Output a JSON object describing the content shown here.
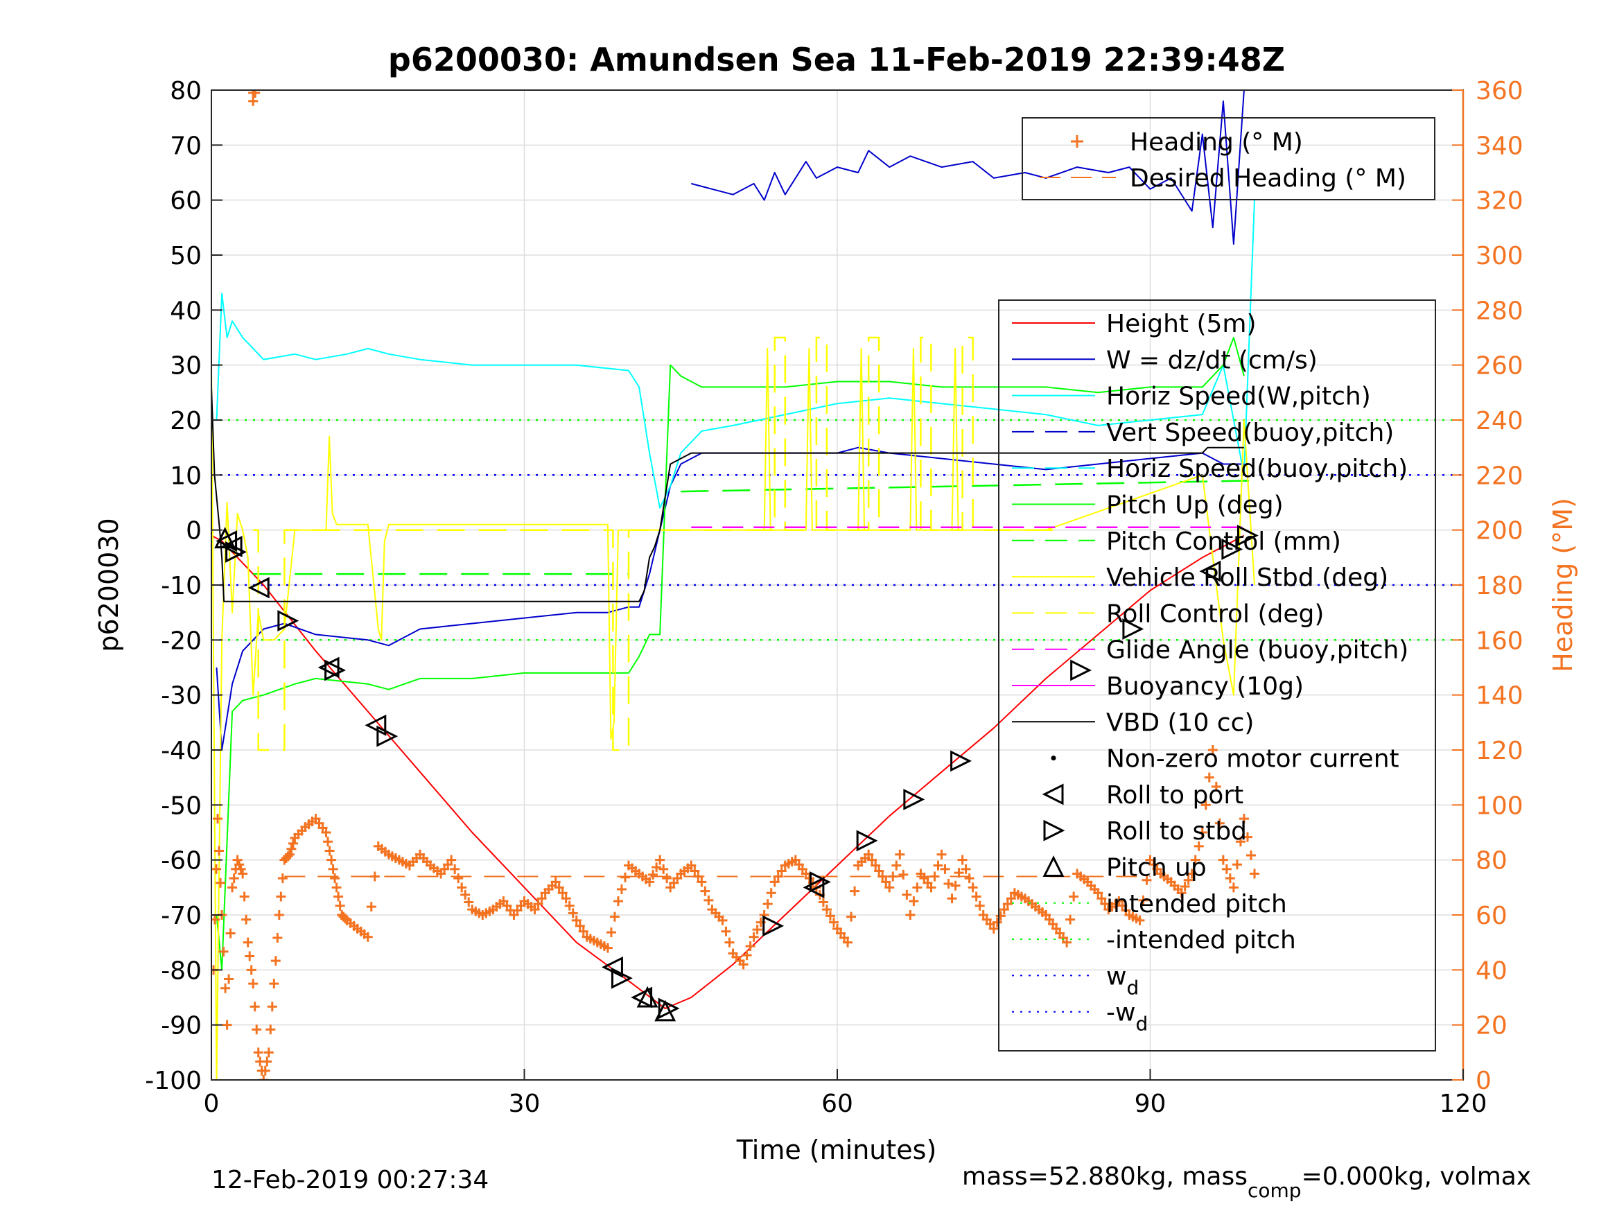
{
  "chart_data": {
    "type": "line",
    "title": "p6200030: Amundsen Sea 11-Feb-2019 22:39:48Z",
    "xlabel": "Time (minutes)",
    "ylabel": "p6200030",
    "ylabel_right": "Heading (°M)",
    "xlim": [
      0,
      120
    ],
    "ylim": [
      -100,
      80
    ],
    "ylim_right": [
      0,
      360
    ],
    "grid": true,
    "x_ticks": [
      "0",
      "30",
      "60",
      "90",
      "120"
    ],
    "y_ticks": [
      "80",
      "70",
      "60",
      "50",
      "40",
      "30",
      "20",
      "10",
      "0",
      "-10",
      "-20",
      "-30",
      "-40",
      "-50",
      "-60",
      "-70",
      "-80",
      "-90",
      "-100"
    ],
    "y_ticks_right": [
      "360",
      "340",
      "320",
      "300",
      "280",
      "260",
      "240",
      "220",
      "200",
      "180",
      "160",
      "140",
      "120",
      "100",
      "80",
      "60",
      "40",
      "20",
      "0"
    ],
    "colors": {
      "height": "#FF0000",
      "w": "#0000CC",
      "horiz_w": "#00FFFF",
      "pitch": "#00FF00",
      "roll": "#FFFF00",
      "glide": "#FF00FF",
      "vbd": "#000000",
      "heading": "#F37321",
      "intended": "#00FF00",
      "wd": "#0000FF"
    },
    "legend_top": {
      "placement": "top-right",
      "entries": [
        {
          "label": "Heading (° M)",
          "marker": "plus",
          "color": "#F37321"
        },
        {
          "label": "Desired Heading (° M)",
          "marker": "dash",
          "color": "#F37321"
        }
      ]
    },
    "legend_main": {
      "placement": "right",
      "entries": [
        {
          "label": "Height (5m)",
          "style": "solid",
          "color": "#FF0000"
        },
        {
          "label": "W = dz/dt (cm/s)",
          "style": "solid",
          "color": "#0000CC"
        },
        {
          "label": "Horiz Speed(W,pitch)",
          "style": "solid",
          "color": "#00FFFF"
        },
        {
          "label": "Vert Speed(buoy,pitch)",
          "style": "dashed",
          "color": "#0000CC"
        },
        {
          "label": "Horiz Speed(buoy,pitch)",
          "style": "dashed",
          "color": "#00FFFF"
        },
        {
          "label": "Pitch Up (deg)",
          "style": "solid",
          "color": "#00FF00"
        },
        {
          "label": "Pitch Control (mm)",
          "style": "dashed",
          "color": "#00FF00"
        },
        {
          "label": "Vehicle Roll Stbd (deg)",
          "style": "solid",
          "color": "#FFFF00"
        },
        {
          "label": "Roll Control (deg)",
          "style": "dashed",
          "color": "#FFFF00"
        },
        {
          "label": "Glide Angle (buoy,pitch)",
          "style": "dashed",
          "color": "#FF00FF"
        },
        {
          "label": "Buoyancy (10g)",
          "style": "solid",
          "color": "#FF00FF"
        },
        {
          "label": "VBD (10 cc)",
          "style": "solid",
          "color": "#000000"
        },
        {
          "label": "Non-zero motor current",
          "style": "dot",
          "color": "#000000"
        },
        {
          "label": "Roll to port",
          "style": "tri-left",
          "color": "#000000"
        },
        {
          "label": "Roll to stbd",
          "style": "tri-right",
          "color": "#000000"
        },
        {
          "label": "Pitch up",
          "style": "tri-up",
          "color": "#000000"
        },
        {
          "label": "intended pitch",
          "style": "dotted",
          "color": "#00FF00"
        },
        {
          "label": "-intended pitch",
          "style": "dotted",
          "color": "#00FF00"
        },
        {
          "label": "w",
          "sub": "d",
          "style": "dotted",
          "color": "#0000FF"
        },
        {
          "label": "-w",
          "sub": "d",
          "style": "dotted",
          "color": "#0000FF"
        }
      ]
    },
    "series": [
      {
        "name": "Height (5m)",
        "color": "#FF0000",
        "dash": "",
        "x": [
          0,
          1,
          2,
          5,
          10,
          15,
          20,
          25,
          30,
          35,
          40,
          43.5,
          46,
          50,
          55,
          60,
          65,
          70,
          75,
          80,
          85,
          90,
          95,
          99
        ],
        "y": [
          -1,
          -2,
          -4,
          -10,
          -22,
          -33,
          -44,
          -55,
          -65,
          -75,
          -82,
          -87,
          -85,
          -79,
          -70,
          -61,
          -52,
          -44,
          -36,
          -27,
          -19,
          -11,
          -5,
          -1
        ]
      },
      {
        "name": "W = dz/dt (cm/s)",
        "color": "#0000CC",
        "dash": "",
        "x": [
          0.5,
          1,
          2,
          3,
          5,
          7,
          10,
          15,
          17,
          20,
          25,
          30,
          35,
          38,
          40,
          41,
          42,
          43,
          44,
          45,
          47,
          50,
          55,
          60,
          62,
          65,
          70,
          75,
          80,
          85,
          90,
          95,
          97,
          99
        ],
        "y": [
          -25,
          -40,
          -28,
          -22,
          -18,
          -17,
          -19,
          -20,
          -21,
          -18,
          -17,
          -16,
          -15,
          -15,
          -14,
          -14,
          -8,
          0,
          8,
          12,
          14,
          14,
          14,
          14,
          15,
          14,
          13,
          12,
          11,
          12,
          13,
          14,
          12,
          12
        ]
      },
      {
        "name": "W noisy top",
        "color": "#0000CC",
        "dash": "",
        "x": [
          46,
          48,
          50,
          52,
          53,
          54,
          55,
          57,
          58,
          60,
          62,
          63,
          65,
          67,
          70,
          73,
          75,
          78,
          80,
          83,
          86,
          88,
          90,
          92,
          94,
          95,
          96,
          97,
          98,
          99
        ],
        "y": [
          63,
          62,
          61,
          63,
          60,
          65,
          61,
          67,
          64,
          66,
          65,
          69,
          66,
          68,
          66,
          67,
          64,
          65,
          64,
          66,
          65,
          66,
          62,
          64,
          58,
          72,
          55,
          78,
          52,
          80
        ]
      },
      {
        "name": "Horiz Speed(W,pitch)",
        "color": "#00FFFF",
        "dash": "",
        "x": [
          0.5,
          1,
          1.5,
          2,
          3,
          5,
          8,
          10,
          13,
          15,
          17,
          20,
          25,
          30,
          35,
          40,
          41,
          42,
          43,
          44,
          45,
          47,
          50,
          55,
          60,
          65,
          70,
          75,
          80,
          85,
          90,
          95,
          97,
          98,
          99,
          100
        ],
        "y": [
          20,
          43,
          35,
          38,
          35,
          31,
          32,
          31,
          32,
          33,
          32,
          31,
          30,
          30,
          30,
          29,
          26,
          14,
          4,
          8,
          14,
          18,
          19,
          21,
          23,
          24,
          23,
          22,
          21,
          19,
          20,
          21,
          30,
          20,
          10,
          60
        ]
      },
      {
        "name": "Pitch Up (deg)",
        "color": "#00FF00",
        "dash": "",
        "x": [
          0.5,
          1,
          2,
          3,
          5,
          8,
          10,
          15,
          17,
          20,
          25,
          30,
          35,
          38,
          40,
          41,
          42,
          43,
          44,
          45,
          47,
          50,
          55,
          60,
          65,
          70,
          75,
          80,
          85,
          90,
          95,
          97,
          98,
          99
        ],
        "y": [
          -70,
          -80,
          -33,
          -31,
          -30,
          -28,
          -27,
          -28,
          -29,
          -27,
          -27,
          -26,
          -26,
          -26,
          -26,
          -23,
          -19,
          -19,
          30,
          28,
          26,
          26,
          26,
          27,
          27,
          26,
          26,
          26,
          25,
          26,
          26,
          30,
          35,
          28
        ]
      },
      {
        "name": "Pitch Control (mm)",
        "color": "#00FF00",
        "dash": "40,20",
        "x": [
          4,
          40
        ],
        "y": [
          -8,
          -8
        ]
      },
      {
        "name": "Pitch Control (mm) 2",
        "color": "#00FF00",
        "dash": "40,20",
        "x": [
          45,
          100
        ],
        "y": [
          7,
          9
        ]
      },
      {
        "name": "Vehicle Roll Stbd (deg)",
        "color": "#FFFF00",
        "dash": "",
        "x": [
          0,
          0.5,
          1,
          1.5,
          2,
          2.5,
          3,
          3.5,
          4,
          4.5,
          5,
          6,
          7,
          8,
          10,
          11,
          11.3,
          11.6,
          12,
          15,
          16,
          16.3,
          16.6,
          17,
          20,
          25,
          30,
          35,
          38,
          38.3,
          38.6,
          39,
          40,
          45,
          53,
          53.3,
          53.6,
          54,
          57,
          57.3,
          57.6,
          58,
          62,
          62.3,
          62.6,
          63,
          67,
          67.3,
          67.6,
          68,
          71,
          71.3,
          71.6,
          72,
          80,
          95,
          97,
          98,
          99,
          100
        ],
        "y": [
          30,
          -100,
          -20,
          5,
          -15,
          3,
          0,
          -5,
          -30,
          -15,
          -20,
          -20,
          -18,
          0,
          0,
          0,
          17,
          3,
          1,
          1,
          -18,
          -20,
          -2,
          1,
          1,
          1,
          1,
          1,
          1,
          -38,
          -35,
          0,
          0,
          0,
          0,
          33,
          0,
          0,
          0,
          33,
          0,
          0,
          0,
          33,
          0,
          0,
          0,
          33,
          0,
          0,
          0,
          33,
          0,
          0,
          0,
          10,
          -20,
          -30,
          20,
          -10
        ]
      },
      {
        "name": "Roll Control (deg)",
        "color": "#FFFF00",
        "dash": "40,20",
        "x": [
          4,
          4.5,
          4.5,
          7,
          7,
          7.5,
          7.5,
          38.5,
          38.5,
          40,
          40,
          54,
          54,
          55,
          55,
          58,
          58,
          59,
          59,
          63,
          63,
          64,
          64,
          68,
          68,
          69,
          69,
          72,
          72,
          73,
          73,
          82
        ],
        "y": [
          0,
          0,
          -40,
          -40,
          0,
          0,
          0,
          0,
          -40,
          -40,
          0,
          0,
          35,
          35,
          0,
          0,
          35,
          35,
          0,
          0,
          35,
          35,
          0,
          0,
          35,
          35,
          0,
          0,
          35,
          35,
          0,
          0
        ]
      },
      {
        "name": "Glide Angle (buoy,pitch)",
        "color": "#FF00FF",
        "dash": "30,15",
        "x": [
          46,
          99
        ],
        "y": [
          0.5,
          0.5
        ]
      },
      {
        "name": "VBD (10 cc)",
        "color": "#000000",
        "dash": "",
        "x": [
          0,
          0.3,
          0.8,
          1,
          1.2,
          2,
          41,
          41.5,
          42,
          42.5,
          43,
          44,
          46,
          60,
          80,
          95,
          95.5,
          99
        ],
        "y": [
          26,
          10,
          0,
          -5,
          -13,
          -13,
          -13,
          -11,
          -5,
          -3,
          0,
          12,
          14,
          14,
          14,
          14,
          15,
          15
        ]
      },
      {
        "name": "intended pitch",
        "color": "#00FF00",
        "dash": "3,9",
        "x": [
          0,
          120
        ],
        "y": [
          20,
          20
        ]
      },
      {
        "name": "-intended pitch",
        "color": "#00FF00",
        "dash": "3,9",
        "x": [
          0,
          120
        ],
        "y": [
          -20,
          -20
        ]
      },
      {
        "name": "w_d",
        "color": "#0000FF",
        "dash": "3,9",
        "x": [
          0,
          120
        ],
        "y": [
          10,
          10
        ]
      },
      {
        "name": "-w_d",
        "color": "#0000FF",
        "dash": "3,9",
        "x": [
          0,
          120
        ],
        "y": [
          -10,
          -10
        ]
      }
    ],
    "heading": {
      "name": "Heading (° M)",
      "color": "#F37321",
      "x": [
        0.2,
        0.6,
        1,
        1.5,
        2,
        2.5,
        3,
        3.5,
        4,
        4.5,
        5,
        5.5,
        6,
        6.5,
        7,
        7.5,
        8,
        9,
        10,
        11,
        11.5,
        12,
        12.5,
        13,
        14,
        15,
        16,
        17,
        18,
        19,
        20,
        21,
        22,
        23,
        24,
        25,
        26,
        27,
        28,
        29,
        30,
        31,
        32,
        33,
        34,
        35,
        36,
        37,
        38,
        39,
        40,
        41,
        42,
        43,
        44,
        45,
        46,
        47,
        48,
        49,
        50,
        51,
        52,
        53,
        54,
        55,
        56,
        57,
        58,
        59,
        60,
        61,
        62,
        63,
        64,
        65,
        66,
        67,
        68,
        69,
        70,
        71,
        72,
        73,
        74,
        75,
        76,
        77,
        78,
        79,
        80,
        81,
        82,
        83,
        84,
        85,
        86,
        87,
        88,
        89,
        90,
        91,
        92,
        93,
        94,
        95,
        96,
        97,
        98,
        99,
        100
      ],
      "y": [
        40,
        95,
        60,
        20,
        70,
        80,
        75,
        50,
        35,
        10,
        0,
        10,
        35,
        60,
        80,
        82,
        88,
        92,
        95,
        90,
        80,
        70,
        60,
        58,
        55,
        52,
        85,
        82,
        80,
        78,
        82,
        78,
        75,
        80,
        70,
        62,
        60,
        62,
        65,
        60,
        65,
        62,
        68,
        72,
        66,
        58,
        52,
        50,
        48,
        65,
        78,
        75,
        72,
        80,
        70,
        75,
        78,
        72,
        62,
        58,
        46,
        42,
        52,
        60,
        72,
        78,
        80,
        75,
        70,
        62,
        55,
        50,
        78,
        82,
        76,
        70,
        82,
        60,
        75,
        70,
        82,
        66,
        80,
        70,
        60,
        55,
        62,
        68,
        66,
        63,
        60,
        55,
        50,
        75,
        72,
        68,
        62,
        65,
        60,
        58,
        80,
        75,
        72,
        68,
        75,
        90,
        120,
        80,
        70,
        95,
        75
      ],
      "extra_x": [
        4,
        4,
        4.2
      ],
      "extra_y": [
        359,
        356,
        359
      ]
    },
    "desired_heading": {
      "name": "Desired Heading (° M)",
      "color": "#F37321",
      "x": [
        7,
        90
      ],
      "y": [
        74,
        74
      ]
    },
    "roll_markers": [
      {
        "type": "left",
        "x": 1.5,
        "y": -2
      },
      {
        "type": "left",
        "x": 2,
        "y": -3
      },
      {
        "type": "right",
        "x": 2.3,
        "y": -4
      },
      {
        "type": "left",
        "x": 4.6,
        "y": -10.5
      },
      {
        "type": "right",
        "x": 7.3,
        "y": -16.5
      },
      {
        "type": "left",
        "x": 11.3,
        "y": -25
      },
      {
        "type": "right",
        "x": 11.8,
        "y": -25.5
      },
      {
        "type": "left",
        "x": 15.8,
        "y": -35.5
      },
      {
        "type": "right",
        "x": 16.8,
        "y": -37.5
      },
      {
        "type": "left",
        "x": 38.5,
        "y": -79.5
      },
      {
        "type": "right",
        "x": 39.3,
        "y": -81.5
      },
      {
        "type": "left",
        "x": 41.3,
        "y": -85
      },
      {
        "type": "right",
        "x": 43.8,
        "y": -87
      },
      {
        "type": "right",
        "x": 53.8,
        "y": -72
      },
      {
        "type": "left",
        "x": 57.8,
        "y": -65
      },
      {
        "type": "right",
        "x": 58.3,
        "y": -64
      },
      {
        "type": "right",
        "x": 62.8,
        "y": -56.5
      },
      {
        "type": "right",
        "x": 67.3,
        "y": -49
      },
      {
        "type": "right",
        "x": 71.8,
        "y": -42
      },
      {
        "type": "right",
        "x": 83.3,
        "y": -25.5
      },
      {
        "type": "right",
        "x": 88.3,
        "y": -18
      },
      {
        "type": "left",
        "x": 95.8,
        "y": -7.5
      },
      {
        "type": "right",
        "x": 97.8,
        "y": -3.5
      },
      {
        "type": "right",
        "x": 99.3,
        "y": -1
      }
    ],
    "pitch_markers": [
      {
        "x": 1.3,
        "y": -1.5
      },
      {
        "x": 41.8,
        "y": -85
      },
      {
        "x": 43.5,
        "y": -87.5
      }
    ]
  },
  "footer": {
    "date": "12-Feb-2019 00:27:34",
    "mass_prefix": "mass=52.880kg, mass",
    "mass_sub": "comp",
    "mass_suffix": "=0.000kg, volmax"
  }
}
